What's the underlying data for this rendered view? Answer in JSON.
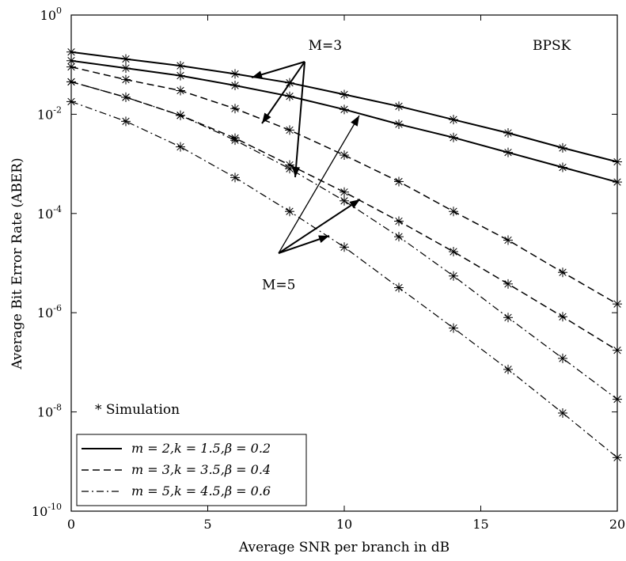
{
  "chart_data": {
    "type": "line",
    "title": "",
    "xlabel": "Average SNR per branch in dB",
    "ylabel": "Average Bit Error Rate (ABER)",
    "x_scale": "linear",
    "y_scale": "log",
    "xlim": [
      0,
      20
    ],
    "ylim": [
      1e-10,
      1
    ],
    "x_ticks": [
      0,
      5,
      10,
      15,
      20
    ],
    "x_tick_labels": [
      "0",
      "5",
      "10",
      "15",
      "20"
    ],
    "y_ticks": [
      1,
      0.01,
      0.0001,
      1e-06,
      1e-08,
      1e-10
    ],
    "y_tick_labels": [
      {
        "base": "10",
        "exp": "0"
      },
      {
        "base": "10",
        "exp": "-2"
      },
      {
        "base": "10",
        "exp": "-4"
      },
      {
        "base": "10",
        "exp": "-6"
      },
      {
        "base": "10",
        "exp": "-8"
      },
      {
        "base": "10",
        "exp": "-10"
      }
    ],
    "grid": false,
    "legend_position": "bottom-left",
    "legend": [
      {
        "label": "m = 2,k = 1.5,β = 0.2",
        "style": "solid"
      },
      {
        "label": "m = 3,k = 3.5,β = 0.4",
        "style": "dashed"
      },
      {
        "label": "m = 5,k = 4.5,β = 0.6",
        "style": "dashdot"
      }
    ],
    "marker_note": "* Simulation",
    "annotations": [
      {
        "text": "BPSK",
        "x": 17.6,
        "y": 0.2
      },
      {
        "text": "M=3",
        "x": 9.3,
        "y": 0.2
      },
      {
        "text": "M=5",
        "x": 7.6,
        "y": 3e-06
      }
    ],
    "x": [
      0,
      2,
      4,
      6,
      8,
      10,
      12,
      14,
      16,
      18,
      20
    ],
    "series": [
      {
        "style": "solid",
        "group": "M=3",
        "values": [
          0.18,
          0.13,
          0.095,
          0.065,
          0.043,
          0.025,
          0.0145,
          0.0078,
          0.0042,
          0.0021,
          0.0011
        ]
      },
      {
        "style": "solid",
        "group": "M=5",
        "values": [
          0.12,
          0.085,
          0.06,
          0.038,
          0.023,
          0.0125,
          0.0063,
          0.0034,
          0.0017,
          0.00085,
          0.00043
        ]
      },
      {
        "style": "dashed",
        "group": "M=3",
        "values": [
          0.09,
          0.05,
          0.03,
          0.013,
          0.0048,
          0.0015,
          0.00044,
          0.00011,
          2.9e-05,
          6.5e-06,
          1.5e-06
        ]
      },
      {
        "style": "dashed",
        "group": "M=5",
        "values": [
          0.045,
          0.022,
          0.0095,
          0.0033,
          0.00095,
          0.00027,
          7e-05,
          1.7e-05,
          3.8e-06,
          8.3e-07,
          1.75e-07
        ]
      },
      {
        "style": "dashdot",
        "group": "M=3",
        "values": [
          0.045,
          0.022,
          0.0095,
          0.003,
          0.0008,
          0.00018,
          3.4e-05,
          5.5e-06,
          8e-07,
          1.2e-07,
          1.8e-08
        ]
      },
      {
        "style": "dashdot",
        "group": "M=5",
        "values": [
          0.018,
          0.0072,
          0.0022,
          0.00053,
          0.00011,
          2.1e-05,
          3.2e-06,
          4.9e-07,
          7.2e-08,
          9.5e-09,
          1.2e-09
        ]
      }
    ]
  }
}
